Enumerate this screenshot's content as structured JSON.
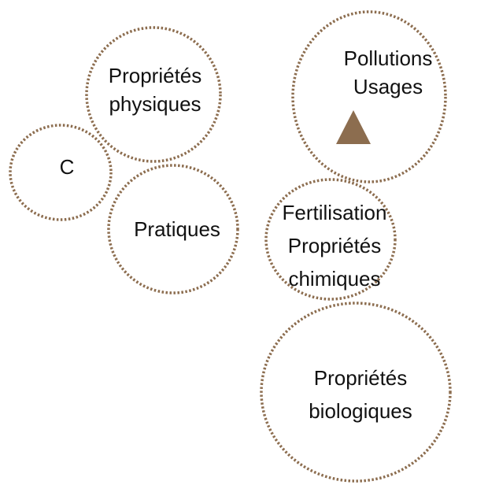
{
  "nodes": [
    {
      "lines": [
        "Propriétés",
        "physiques"
      ]
    },
    {
      "lines": [
        "C"
      ]
    },
    {
      "lines": [
        "Pratiques"
      ]
    },
    {
      "lines": [
        "Pollutions",
        "Usages"
      ]
    },
    {
      "lines": [
        "Fertilisation",
        "Propriétés",
        "chimiques"
      ]
    },
    {
      "lines": [
        "Propriétés",
        "biologiques"
      ]
    }
  ]
}
